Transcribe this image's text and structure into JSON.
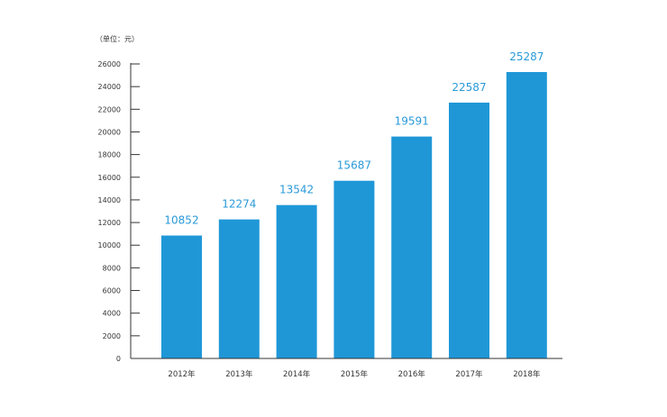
{
  "chart_data": {
    "type": "bar",
    "unit_label": "（单位：元）",
    "categories": [
      "2012年",
      "2013年",
      "2014年",
      "2015年",
      "2016年",
      "2017年",
      "2018年"
    ],
    "values": [
      10852,
      12274,
      13542,
      15687,
      19591,
      22587,
      25287
    ],
    "data_labels": [
      "10852",
      "12274",
      "13542",
      "15687",
      "19591",
      "22587",
      "25287"
    ],
    "y_ticks": [
      0,
      2000,
      4000,
      6000,
      8000,
      10000,
      12000,
      14000,
      16000,
      18000,
      20000,
      22000,
      24000,
      26000
    ],
    "ylim": [
      0,
      26000
    ],
    "bar_color": "#1f97d7",
    "label_color": "#2a9ad8",
    "axis_color": "#333333",
    "grid": false,
    "legend": false
  }
}
